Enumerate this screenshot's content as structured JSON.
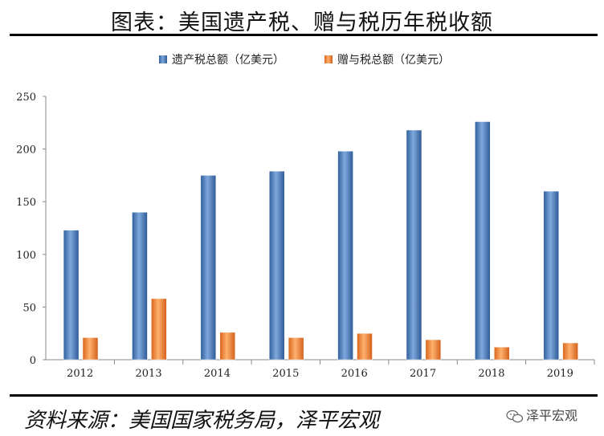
{
  "title": "图表：美国遗产税、赠与税历年税收额",
  "source": "资料来源：美国国家税务局，泽平宏观",
  "watermark": {
    "text": "泽平宏观",
    "icon": "wechat-icon"
  },
  "chart_data": {
    "type": "bar",
    "categories": [
      "2012",
      "2013",
      "2014",
      "2015",
      "2016",
      "2017",
      "2018",
      "2019"
    ],
    "series": [
      {
        "name": "遗产税总额（亿美元）",
        "color": "#4a7ebb",
        "values": [
          123,
          140,
          175,
          179,
          198,
          218,
          226,
          160
        ]
      },
      {
        "name": "赠与税总额（亿美元）",
        "color": "#f08a3a",
        "values": [
          21,
          58,
          26,
          21,
          25,
          19,
          12,
          16
        ]
      }
    ],
    "ylim": [
      0,
      250
    ],
    "yticks": [
      0,
      50,
      100,
      150,
      200,
      250
    ],
    "grid": false,
    "legend": "top"
  }
}
